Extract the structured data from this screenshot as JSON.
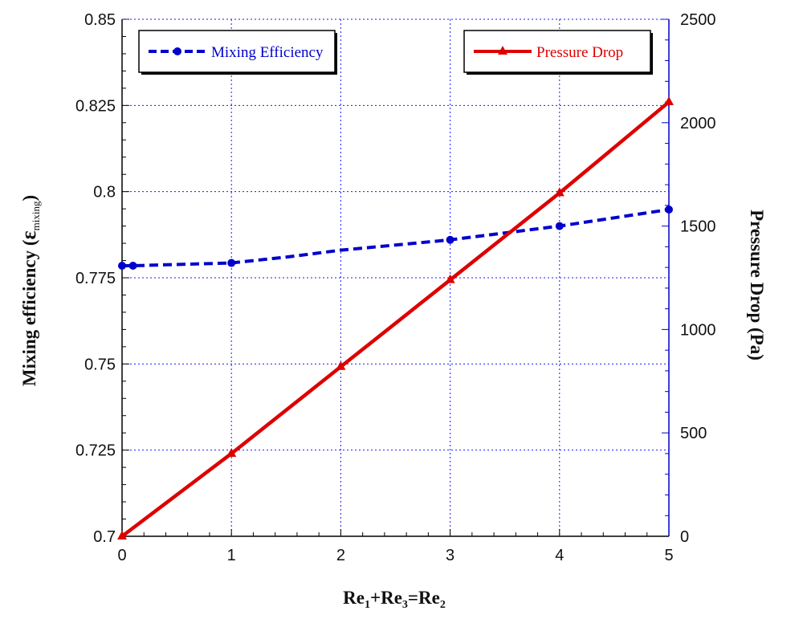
{
  "chart_data": {
    "type": "line",
    "xlabel": {
      "base": "Re",
      "parts": [
        [
          "1",
          "+"
        ],
        [
          "3",
          "="
        ],
        [
          "2",
          ""
        ]
      ]
    },
    "ylabel_left": {
      "text": "Mixing efficiency  (",
      "symbol": "ε",
      "sub": "mixing",
      "close": ")"
    },
    "ylabel_right": "Pressure Drop  (Pa)",
    "xlim": [
      0,
      5
    ],
    "ylim_left": [
      0.7,
      0.85
    ],
    "ylim_right": [
      0,
      2500
    ],
    "x_ticks": [
      "0",
      "1",
      "2",
      "3",
      "4",
      "5"
    ],
    "y_left_ticks": [
      "0.7",
      "0.725",
      "0.75",
      "0.775",
      "0.8",
      "0.825",
      "0.85"
    ],
    "y_right_ticks": [
      "0",
      "500",
      "1000",
      "1500",
      "2000",
      "2500"
    ],
    "grid": true,
    "series": [
      {
        "name": "Mixing Efficiency",
        "axis": "left",
        "color": "#0000cc",
        "style": "dashed",
        "marker": "circle",
        "line_x": [
          0,
          0.1,
          1,
          1.5,
          2,
          3,
          4,
          5
        ],
        "line_y": [
          0.7785,
          0.7785,
          0.7793,
          0.781,
          0.783,
          0.786,
          0.79,
          0.7948
        ],
        "points_x": [
          0,
          0.1,
          1,
          3,
          4,
          5
        ],
        "points_y": [
          0.7785,
          0.7785,
          0.7793,
          0.786,
          0.79,
          0.7948
        ],
        "legend_position": "top-left"
      },
      {
        "name": "Pressure Drop",
        "axis": "right",
        "color": "#dd0000",
        "style": "solid",
        "marker": "triangle",
        "line_x": [
          0,
          1,
          2,
          3,
          4,
          5
        ],
        "line_y": [
          0,
          400,
          820,
          1240,
          1660,
          2100
        ],
        "points_x": [
          0,
          1,
          2,
          3,
          4,
          5
        ],
        "points_y": [
          0,
          400,
          820,
          1240,
          1660,
          2100
        ],
        "legend_position": "top-right"
      }
    ]
  }
}
